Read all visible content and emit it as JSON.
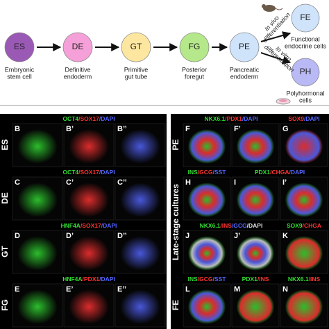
{
  "diagram": {
    "stages": [
      {
        "label": "ES",
        "caption": [
          "Embryonic",
          "stem cell"
        ],
        "color": "#9b59b6"
      },
      {
        "label": "DE",
        "caption": [
          "Definitive",
          "endoderm"
        ],
        "color": "#f5a0d8"
      },
      {
        "label": "GT",
        "caption": [
          "Primitive",
          "gut tube"
        ],
        "color": "#fde7a0"
      },
      {
        "label": "FG",
        "caption": [
          "Posterior",
          "foregut"
        ],
        "color": "#b5e88a"
      },
      {
        "label": "PE",
        "caption": [
          "Pancreatic",
          "endoderm"
        ],
        "color": "#cfe3fb"
      }
    ],
    "outcomes": [
      {
        "label": "FE",
        "caption": [
          "Functional",
          "endocrine cells"
        ],
        "color": "#cfe3fb",
        "route": [
          "In vivo",
          "differentiation"
        ]
      },
      {
        "label": "PH",
        "caption": [
          "Polyhormonal",
          "cells"
        ],
        "color": "#b9b9f5",
        "route": [
          "In vitro",
          "differentiation"
        ]
      }
    ]
  },
  "panels": {
    "late_stage_label": "Late-stage cultures",
    "left": [
      {
        "row": "ES",
        "groups": [
          {
            "stain": [
              {
                "text": "OCT4",
                "color": "#33dd33"
              },
              {
                "text": "/SOX17",
                "color": "#ff3333"
              },
              {
                "text": "/DAPI",
                "color": "#5566ff"
              }
            ],
            "letters": [
              "B",
              "B’",
              "B’’"
            ]
          }
        ]
      },
      {
        "row": "DE",
        "groups": [
          {
            "stain": [
              {
                "text": "OCT4",
                "color": "#33dd33"
              },
              {
                "text": "/SOX17",
                "color": "#ff3333"
              },
              {
                "text": "/DAPI",
                "color": "#5566ff"
              }
            ],
            "letters": [
              "C",
              "C’",
              "C’’"
            ]
          }
        ]
      },
      {
        "row": "GT",
        "groups": [
          {
            "stain": [
              {
                "text": "HNF4A",
                "color": "#33dd33"
              },
              {
                "text": "/SOX17",
                "color": "#ff3333"
              },
              {
                "text": "/DAPI",
                "color": "#5566ff"
              }
            ],
            "letters": [
              "D",
              "D’",
              "D’’"
            ]
          }
        ]
      },
      {
        "row": "FG",
        "groups": [
          {
            "stain": [
              {
                "text": "HNF4A",
                "color": "#33dd33"
              },
              {
                "text": "/PDX1",
                "color": "#ff3333"
              },
              {
                "text": "/DAPI",
                "color": "#5566ff"
              }
            ],
            "letters": [
              "E",
              "E’",
              "E’’"
            ]
          }
        ]
      }
    ],
    "right": [
      {
        "row": "PE",
        "groups": [
          {
            "stain": [
              {
                "text": "NKX6.1",
                "color": "#33dd33"
              },
              {
                "text": "/PDX1",
                "color": "#ff3333"
              },
              {
                "text": "/DAPI",
                "color": "#5566ff"
              }
            ],
            "letters": [
              "F",
              "F’"
            ]
          },
          {
            "stain": [
              {
                "text": "SOX9",
                "color": "#ff3333"
              },
              {
                "text": "/DAPI",
                "color": "#5566ff"
              }
            ],
            "letters": [
              "G"
            ]
          }
        ]
      },
      {
        "row": null,
        "groups": [
          {
            "stain": [
              {
                "text": "INS",
                "color": "#33dd33"
              },
              {
                "text": "/GCG",
                "color": "#ff3333"
              },
              {
                "text": "/SST",
                "color": "#5566ff"
              }
            ],
            "letters": [
              "H"
            ]
          },
          {
            "stain": [
              {
                "text": "PDX1",
                "color": "#33dd33"
              },
              {
                "text": "/CHGA",
                "color": "#ff3333"
              },
              {
                "text": "/DAPI",
                "color": "#5566ff"
              }
            ],
            "letters": [
              "I",
              "I’"
            ]
          }
        ]
      },
      {
        "row": null,
        "groups": [
          {
            "stain": [
              {
                "text": "NKX6.1",
                "color": "#33dd33"
              },
              {
                "text": "/INS",
                "color": "#ff3333"
              },
              {
                "text": "/GCG",
                "color": "#5566ff"
              },
              {
                "text": "/DAPI",
                "color": "#dddddd"
              }
            ],
            "letters": [
              "J",
              "J’"
            ]
          },
          {
            "stain": [
              {
                "text": "SOX9",
                "color": "#33dd33"
              },
              {
                "text": "/CHGA",
                "color": "#ff3333"
              }
            ],
            "letters": [
              "K"
            ]
          }
        ]
      },
      {
        "row": "FE",
        "groups": [
          {
            "stain": [
              {
                "text": "INS",
                "color": "#33dd33"
              },
              {
                "text": "/GCG",
                "color": "#ff3333"
              },
              {
                "text": "/SST",
                "color": "#5566ff"
              }
            ],
            "letters": [
              "L"
            ]
          },
          {
            "stain": [
              {
                "text": "PDX1",
                "color": "#33dd33"
              },
              {
                "text": "/INS",
                "color": "#ff3333"
              }
            ],
            "letters": [
              "M"
            ]
          },
          {
            "stain": [
              {
                "text": "NKX6.1",
                "color": "#33dd33"
              },
              {
                "text": "/INS",
                "color": "#ff3333"
              }
            ],
            "letters": [
              "N"
            ]
          }
        ]
      }
    ]
  }
}
